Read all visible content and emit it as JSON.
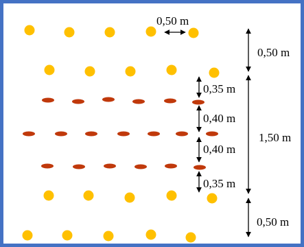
{
  "labels": {
    "top_spacing": "0,50 m",
    "section_top": "0,50 m",
    "gap_a": "0,35 m",
    "gap_b": "0,40 m",
    "gap_c": "0,40 m",
    "gap_d": "0,35 m",
    "section_middle": "1,50 m",
    "section_bottom": "0,50 m"
  },
  "colors": {
    "frame": "#4472c4",
    "yellow_plant": "#ffc000",
    "red_plant": "#c0390b",
    "arrow": "#000000"
  }
}
